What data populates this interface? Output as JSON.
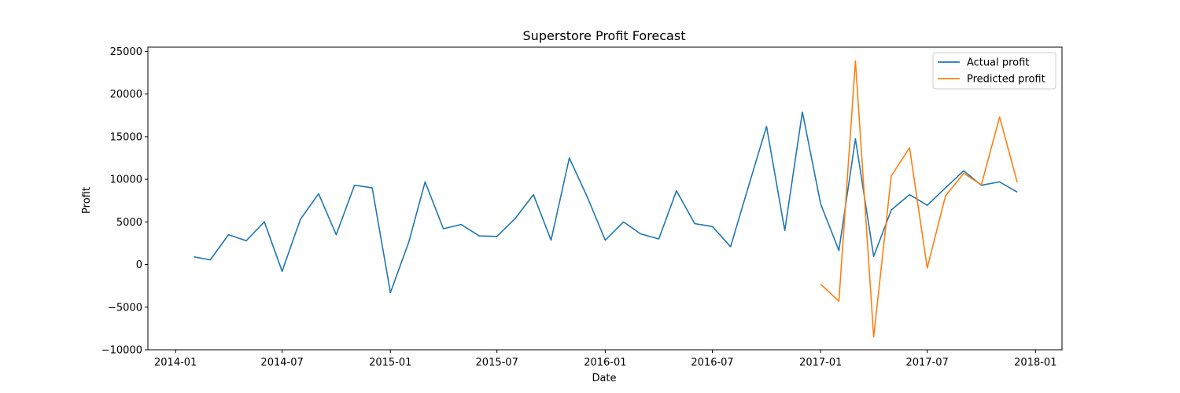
{
  "chart_data": {
    "type": "line",
    "title": "Superstore Profit Forecast",
    "xlabel": "Date",
    "ylabel": "Profit",
    "x_axis": {
      "type": "date",
      "range": [
        "2013-11-15",
        "2018-02-15"
      ],
      "ticks": [
        "2014-01-01",
        "2014-07-01",
        "2015-01-01",
        "2015-07-01",
        "2016-01-01",
        "2016-07-01",
        "2017-01-01",
        "2017-07-01",
        "2018-01-01"
      ],
      "tick_labels": [
        "2014-01",
        "2014-07",
        "2015-01",
        "2015-07",
        "2016-01",
        "2016-07",
        "2017-01",
        "2017-07",
        "2018-01"
      ]
    },
    "y_axis": {
      "range": [
        -10000,
        25500
      ],
      "ticks": [
        -10000,
        -5000,
        0,
        5000,
        10000,
        15000,
        20000,
        25000
      ],
      "tick_labels": [
        "−10000",
        "−5000",
        "0",
        "5000",
        "10000",
        "15000",
        "20000",
        "25000"
      ]
    },
    "grid": false,
    "legend": {
      "placement": "top-right"
    },
    "series": [
      {
        "name": "Actual profit",
        "color": "#1f77b4",
        "x": [
          "2014-02-01",
          "2014-03-01",
          "2014-04-01",
          "2014-05-01",
          "2014-06-01",
          "2014-07-01",
          "2014-08-01",
          "2014-09-01",
          "2014-10-01",
          "2014-11-01",
          "2014-12-01",
          "2015-01-01",
          "2015-02-01",
          "2015-03-01",
          "2015-04-01",
          "2015-05-01",
          "2015-06-01",
          "2015-07-01",
          "2015-08-01",
          "2015-09-01",
          "2015-10-01",
          "2015-11-01",
          "2015-12-01",
          "2016-01-01",
          "2016-02-01",
          "2016-03-01",
          "2016-04-01",
          "2016-05-01",
          "2016-06-01",
          "2016-07-01",
          "2016-08-01",
          "2016-09-01",
          "2016-10-01",
          "2016-11-01",
          "2016-12-01",
          "2017-01-01",
          "2017-02-01",
          "2017-03-01",
          "2017-04-01",
          "2017-05-01",
          "2017-06-01",
          "2017-07-01",
          "2017-08-01",
          "2017-09-01",
          "2017-10-01",
          "2017-11-01",
          "2017-12-01"
        ],
        "y": [
          900,
          550,
          3500,
          2800,
          5000,
          -800,
          5300,
          8300,
          3500,
          9300,
          9000,
          -3300,
          2600,
          9700,
          4200,
          4700,
          3350,
          3300,
          5400,
          8200,
          2850,
          12500,
          8000,
          2850,
          5000,
          3600,
          3000,
          8650,
          4800,
          4450,
          2100,
          9300,
          16200,
          4000,
          17900,
          7100,
          1650,
          14750,
          950,
          6400,
          8200,
          6950,
          9000,
          11000,
          9300,
          9700,
          8500
        ]
      },
      {
        "name": "Predicted profit",
        "color": "#ff7f0e",
        "x": [
          "2017-01-01",
          "2017-02-01",
          "2017-03-01",
          "2017-04-01",
          "2017-05-01",
          "2017-06-01",
          "2017-07-01",
          "2017-08-01",
          "2017-09-01",
          "2017-10-01",
          "2017-11-01",
          "2017-12-01"
        ],
        "y": [
          -2300,
          -4300,
          23900,
          -8500,
          10400,
          13700,
          -400,
          8050,
          10700,
          9350,
          17300,
          9650
        ]
      }
    ]
  }
}
